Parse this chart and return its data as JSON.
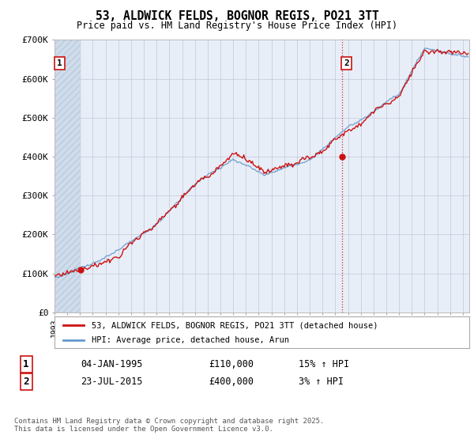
{
  "title": "53, ALDWICK FELDS, BOGNOR REGIS, PO21 3TT",
  "subtitle": "Price paid vs. HM Land Registry's House Price Index (HPI)",
  "background_color": "#ffffff",
  "plot_bg_color": "#e8eef8",
  "hatch_color": "#c8d4e8",
  "grid_color": "#c0c8d8",
  "line1_color": "#cc1111",
  "line2_color": "#6699cc",
  "point1_x": 1995.04,
  "point1_y": 110000,
  "point2_x": 2015.56,
  "point2_y": 400000,
  "ylim": [
    0,
    700000
  ],
  "yticks": [
    0,
    100000,
    200000,
    300000,
    400000,
    500000,
    600000,
    700000
  ],
  "ytick_labels": [
    "£0",
    "£100K",
    "£200K",
    "£300K",
    "£400K",
    "£500K",
    "£600K",
    "£700K"
  ],
  "xmin": 1993.0,
  "xmax": 2025.5,
  "xticks": [
    1993,
    1994,
    1995,
    1996,
    1997,
    1998,
    1999,
    2000,
    2001,
    2002,
    2003,
    2004,
    2005,
    2006,
    2007,
    2008,
    2009,
    2010,
    2011,
    2012,
    2013,
    2014,
    2015,
    2016,
    2017,
    2018,
    2019,
    2020,
    2021,
    2022,
    2023,
    2024,
    2025
  ],
  "vline_x": 2015.56,
  "legend_line1": "53, ALDWICK FELDS, BOGNOR REGIS, PO21 3TT (detached house)",
  "legend_line2": "HPI: Average price, detached house, Arun",
  "row1_num": "1",
  "row1_date": "04-JAN-1995",
  "row1_price": "£110,000",
  "row1_hpi": "15% ↑ HPI",
  "row2_num": "2",
  "row2_date": "23-JUL-2015",
  "row2_price": "£400,000",
  "row2_hpi": "3% ↑ HPI",
  "footer": "Contains HM Land Registry data © Crown copyright and database right 2025.\nThis data is licensed under the Open Government Licence v3.0."
}
